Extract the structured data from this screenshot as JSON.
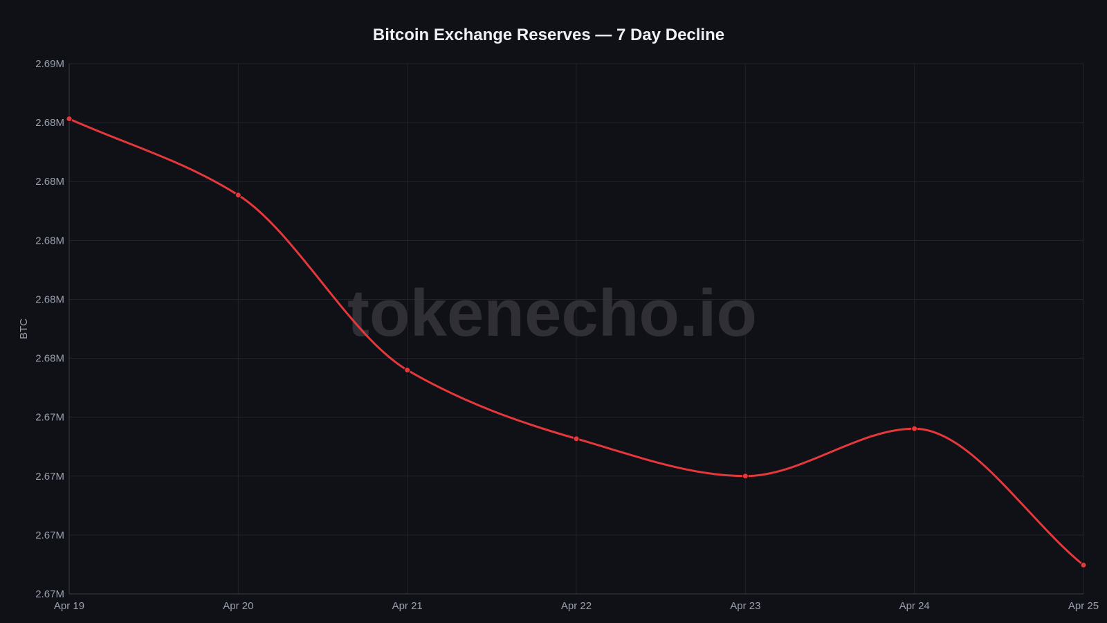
{
  "chart_data": {
    "type": "line",
    "title": "Bitcoin Exchange Reserves — 7 Day Decline",
    "xlabel": "",
    "ylabel": "BTC",
    "watermark": "tokenecho.io",
    "categories": [
      "Apr 19",
      "Apr 20",
      "Apr 21",
      "Apr 22",
      "Apr 23",
      "Apr 24",
      "Apr 25"
    ],
    "series": [
      {
        "values": [
          2.68413,
          2.68154,
          2.6756,
          2.67327,
          2.672,
          2.67361,
          2.66898
        ],
        "color": "#e5383b"
      }
    ],
    "ylim": [
      2.668,
      2.686
    ],
    "yticks": [
      2.668,
      2.67,
      2.672,
      2.674,
      2.676,
      2.678,
      2.68,
      2.682,
      2.684,
      2.686
    ],
    "ytick_labels": [
      "2.67M",
      "2.67M",
      "2.67M",
      "2.67M",
      "2.68M",
      "2.68M",
      "2.68M",
      "2.68M",
      "2.68M",
      "2.69M"
    ],
    "grid": true,
    "legend": "none",
    "background": "#101117"
  }
}
